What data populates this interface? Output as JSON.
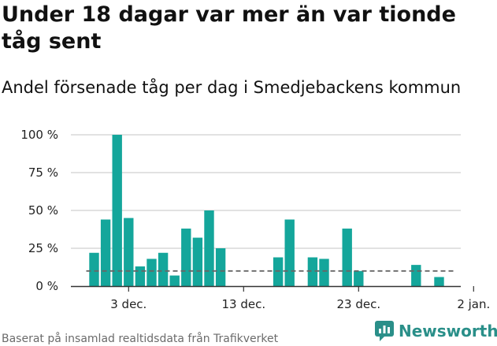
{
  "header": {
    "title": "Under 18 dagar var mer än var tionde tåg sent",
    "subtitle": "Andel försenade tåg per dag i Smedjebackens kommun"
  },
  "footer": {
    "source": "Baserat på insamlad realtidsdata från Trafikverket",
    "brand": "Newsworthy"
  },
  "colors": {
    "bar": "#14a69b",
    "grid": "#d9d9d9",
    "reference_line": "#666666",
    "brand": "#2a8f89"
  },
  "icons": {
    "brand_logo": "newsworthy-logo-icon"
  },
  "chart_data": {
    "type": "bar",
    "title": "",
    "xlabel": "",
    "ylabel": "",
    "x": [
      "2019-11-30",
      "2019-12-01",
      "2019-12-02",
      "2019-12-03",
      "2019-12-04",
      "2019-12-05",
      "2019-12-06",
      "2019-12-07",
      "2019-12-08",
      "2019-12-09",
      "2019-12-10",
      "2019-12-11",
      "2019-12-12",
      "2019-12-13",
      "2019-12-14",
      "2019-12-15",
      "2019-12-16",
      "2019-12-17",
      "2019-12-18",
      "2019-12-19",
      "2019-12-20",
      "2019-12-21",
      "2019-12-22",
      "2019-12-23",
      "2019-12-24",
      "2019-12-25",
      "2019-12-26",
      "2019-12-27",
      "2019-12-28",
      "2019-12-29",
      "2019-12-30"
    ],
    "values": [
      22,
      44,
      100,
      45,
      13,
      18,
      22,
      7,
      38,
      32,
      50,
      25,
      0,
      0,
      0,
      0,
      19,
      44,
      0,
      19,
      18,
      0,
      38,
      10,
      0,
      0,
      0,
      0,
      14,
      0,
      6
    ],
    "reference_line": 10,
    "ylim": [
      0,
      100
    ],
    "y_ticks": [
      {
        "value": 0,
        "label": "0 %"
      },
      {
        "value": 25,
        "label": "25 %"
      },
      {
        "value": 50,
        "label": "50 %"
      },
      {
        "value": 75,
        "label": "75 %"
      },
      {
        "value": 100,
        "label": "100 %"
      }
    ],
    "x_ticks": [
      {
        "date": "2019-12-03",
        "label": "3 dec."
      },
      {
        "date": "2019-12-13",
        "label": "13 dec."
      },
      {
        "date": "2019-12-23",
        "label": "23 dec."
      },
      {
        "date": "2020-01-02",
        "label": "2 jan."
      }
    ],
    "grid": true
  }
}
